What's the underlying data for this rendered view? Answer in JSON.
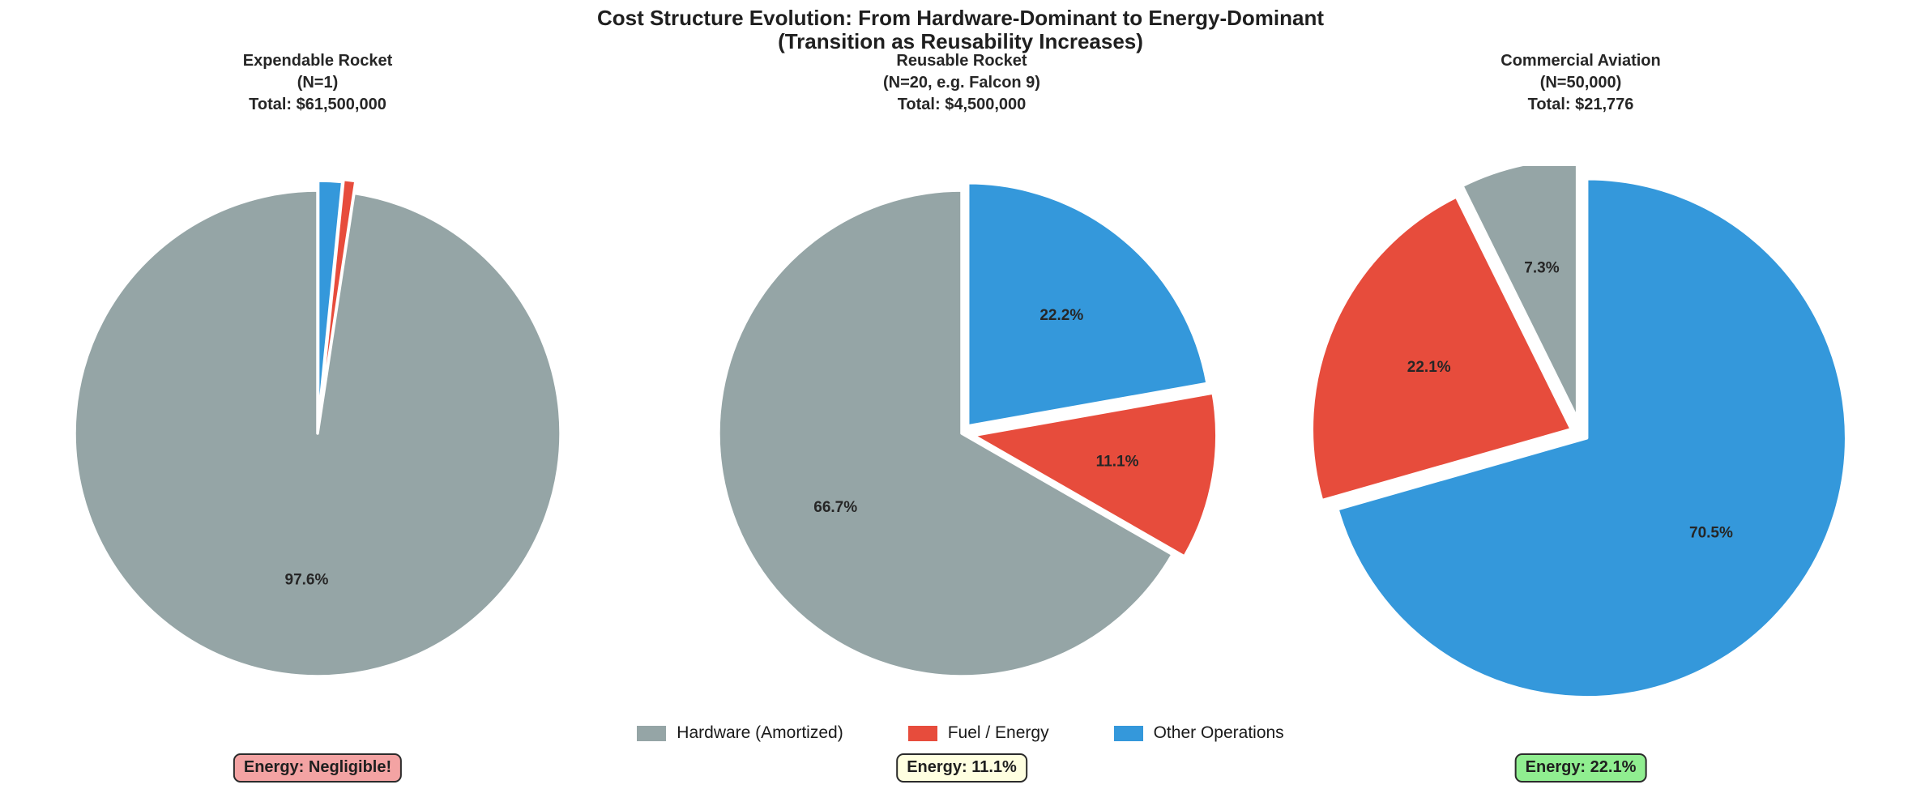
{
  "suptitle": {
    "line1": "Cost Structure Evolution: From Hardware-Dominant to Energy-Dominant",
    "line2": "(Transition as Reusability Increases)"
  },
  "legend": [
    {
      "key": "hardware",
      "label": "Hardware (Amortized)",
      "color": "#95a5a6"
    },
    {
      "key": "fuel",
      "label": "Fuel / Energy",
      "color": "#e74c3c"
    },
    {
      "key": "other",
      "label": "Other Operations",
      "color": "#3498db"
    }
  ],
  "chart_data": [
    {
      "type": "pie",
      "title": "Expendable Rocket",
      "subtitle": "(N=1)",
      "total": "Total: $61,500,000",
      "categories": [
        "Hardware (Amortized)",
        "Fuel / Energy",
        "Other Operations"
      ],
      "values": [
        97.6,
        0.8,
        1.6
      ],
      "slice_labels": [
        "97.6%",
        null,
        null
      ],
      "startangle": 90,
      "counterclock": true,
      "explode": [
        0,
        0.05,
        0.04
      ],
      "annotation": {
        "text": "Energy: Negligible!",
        "bg": "#f3a3a3",
        "border": "#2b2b2b"
      }
    },
    {
      "type": "pie",
      "title": "Reusable Rocket",
      "subtitle": "(N=20, e.g. Falcon 9)",
      "total": "Total: $4,500,000",
      "categories": [
        "Hardware (Amortized)",
        "Fuel / Energy",
        "Other Operations"
      ],
      "values": [
        66.7,
        11.1,
        22.2
      ],
      "slice_labels": [
        "66.7%",
        "11.1%",
        "22.2%"
      ],
      "startangle": 90,
      "counterclock": true,
      "explode": [
        0,
        0.05,
        0.04
      ],
      "annotation": {
        "text": "Energy: 11.1%",
        "bg": "#ffffe0",
        "border": "#2b2b2b"
      }
    },
    {
      "type": "pie",
      "title": "Commercial Aviation",
      "subtitle": "(N=50,000)",
      "total": "Total: $21,776",
      "categories": [
        "Hardware (Amortized)",
        "Fuel / Energy",
        "Other Operations"
      ],
      "values": [
        7.3,
        22.1,
        70.5
      ],
      "slice_labels": [
        "7.3%",
        "22.1%",
        "70.5%"
      ],
      "startangle": 90,
      "counterclock": true,
      "explode": [
        0.06,
        0.04,
        0.03
      ],
      "annotation": {
        "text": "Energy: 22.1%",
        "bg": "#90ee90",
        "border": "#2b2b2b"
      }
    }
  ]
}
